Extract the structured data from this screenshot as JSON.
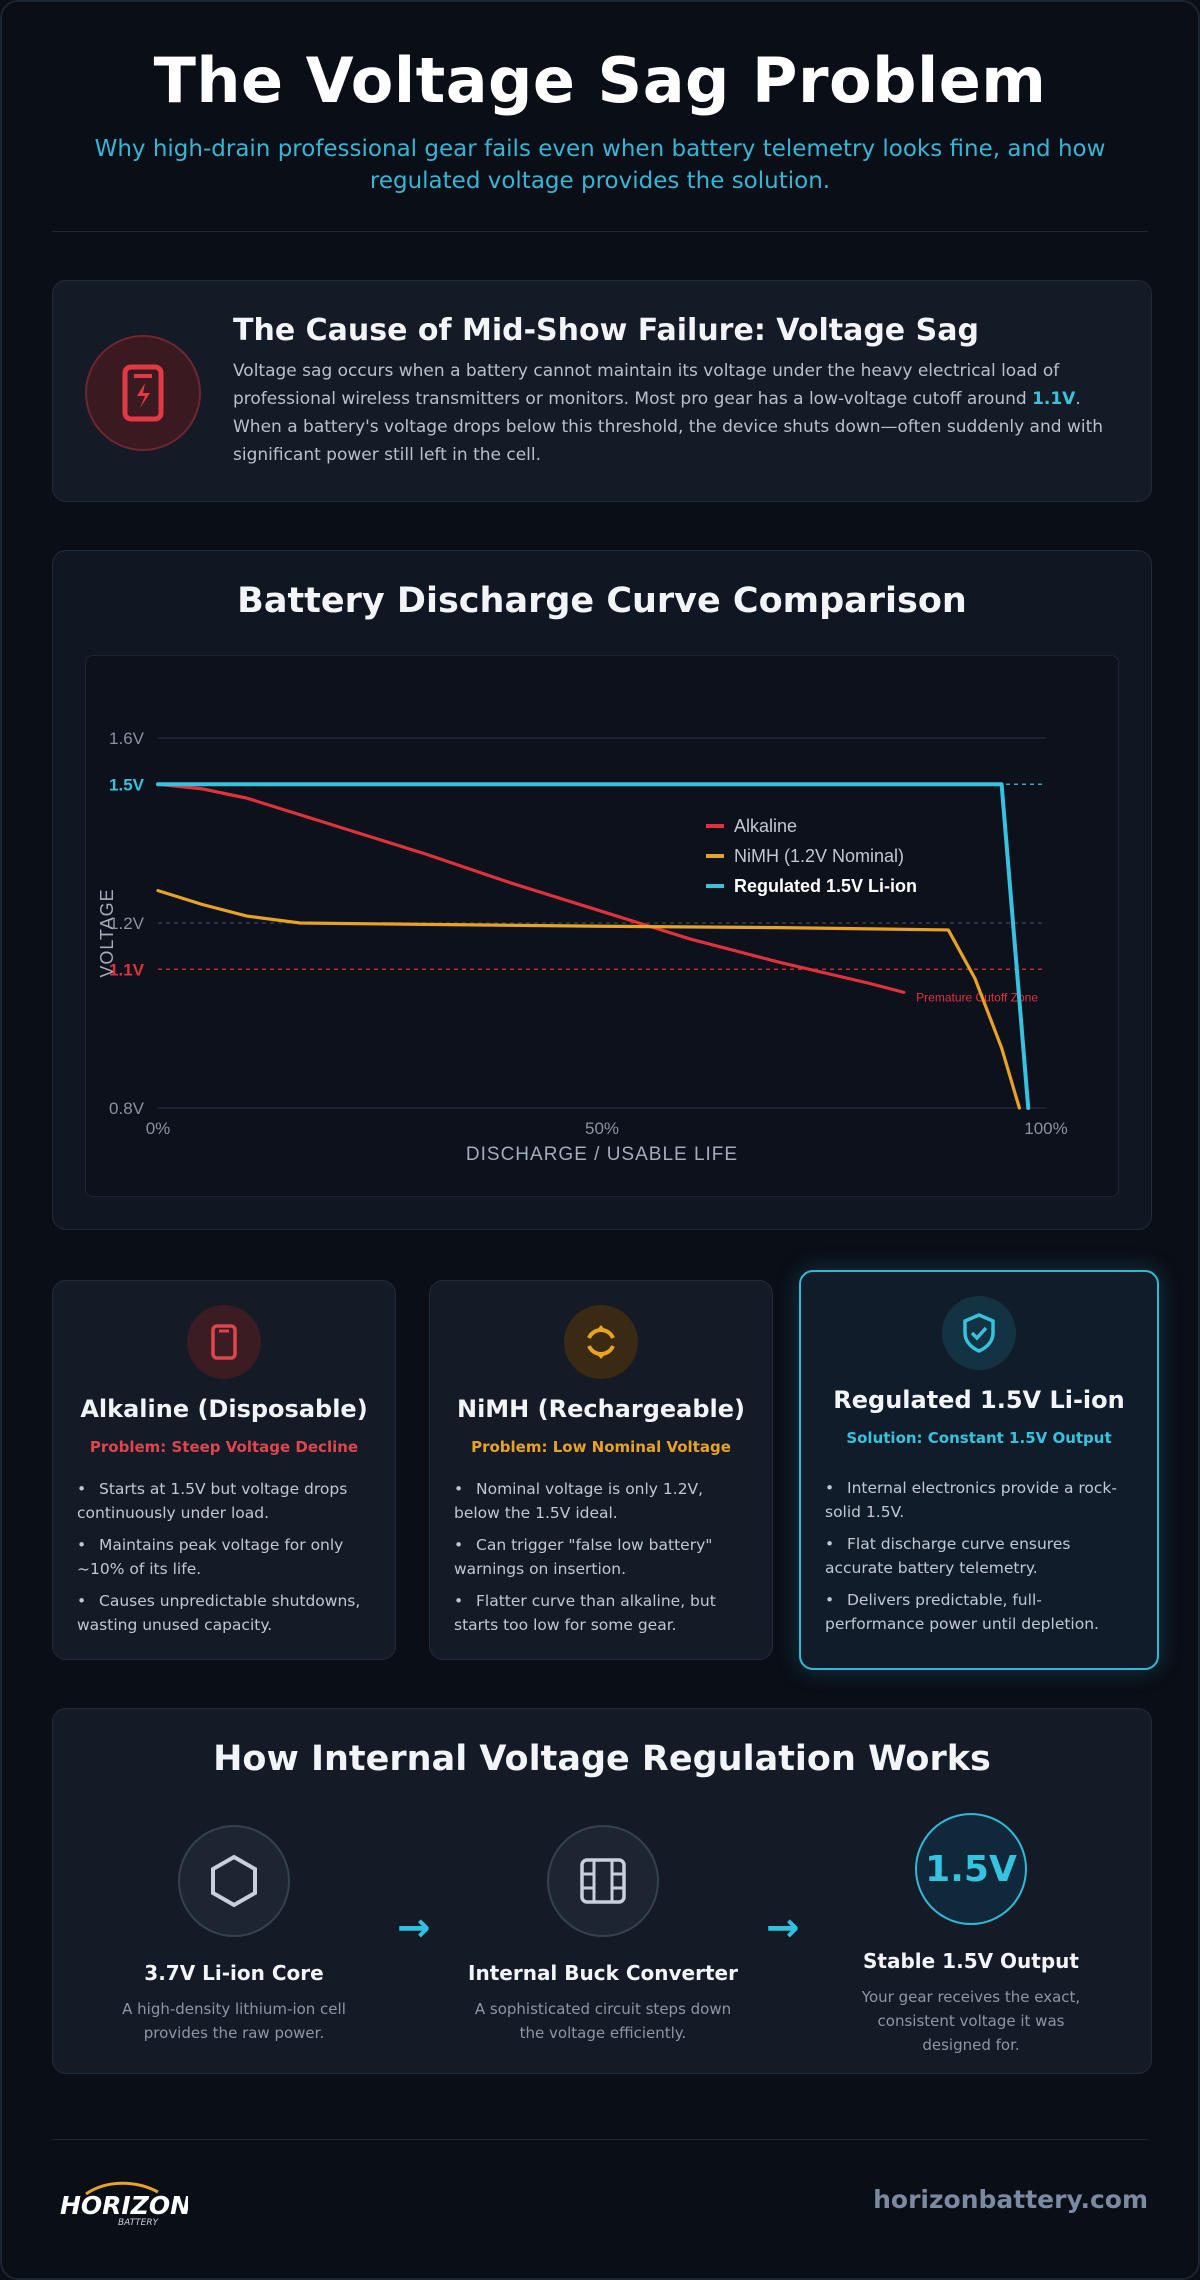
{
  "header": {
    "title": "The Voltage Sag Problem",
    "subtitle": "Why high-drain professional gear fails even when battery telemetry looks fine, and how regulated voltage provides the solution."
  },
  "cause": {
    "icon": "battery-bolt-icon",
    "title": "The Cause of Mid-Show Failure: Voltage Sag",
    "text_before": "Voltage sag occurs when a battery cannot maintain its voltage under the heavy electrical load of professional wireless transmitters or monitors. Most pro gear has a low-voltage cutoff around ",
    "highlight": "1.1V",
    "text_after": ". When a battery's voltage drops below this threshold, the device shuts down—often suddenly and with significant power still left in the cell."
  },
  "chart_section": {
    "title": "Battery Discharge Curve Comparison"
  },
  "chart_data": {
    "type": "line",
    "title": "Battery Discharge Curve Comparison",
    "xlabel": "DISCHARGE / USABLE LIFE",
    "ylabel": "VOLTAGE",
    "xlim": [
      0,
      100
    ],
    "ylim": [
      0.8,
      1.6
    ],
    "x_ticks": [
      "0%",
      "50%",
      "100%"
    ],
    "x_tick_values": [
      0,
      50,
      100
    ],
    "y_ticks": [
      "0.8V",
      "1.1V",
      "1.2V",
      "1.5V",
      "1.6V"
    ],
    "y_tick_values": [
      0.8,
      1.1,
      1.2,
      1.5,
      1.6
    ],
    "reference_lines": [
      {
        "y": 1.1,
        "label": "Premature Cutoff Zone",
        "color": "#e0323c"
      },
      {
        "y": 1.2,
        "label": "",
        "color": "#3a4352"
      },
      {
        "y": 1.5,
        "label": "",
        "color": "#35c3e0"
      }
    ],
    "legend_position": "top-right",
    "grid": false,
    "series": [
      {
        "name": "Alkaline",
        "color": "#e0323c",
        "x": [
          0,
          5,
          10,
          15,
          20,
          30,
          40,
          50,
          60,
          70,
          80,
          84
        ],
        "values": [
          1.5,
          1.49,
          1.47,
          1.44,
          1.41,
          1.35,
          1.285,
          1.225,
          1.165,
          1.115,
          1.07,
          1.05
        ]
      },
      {
        "name": "NiMH (1.2V Nominal)",
        "color": "#e8a323",
        "x": [
          0,
          5,
          10,
          16,
          30,
          50,
          70,
          89,
          92,
          95,
          97
        ],
        "values": [
          1.27,
          1.24,
          1.215,
          1.2,
          1.197,
          1.193,
          1.19,
          1.185,
          1.08,
          0.93,
          0.8
        ]
      },
      {
        "name": "Regulated 1.5V Li-ion",
        "color": "#35c3e0",
        "x": [
          0,
          25,
          50,
          75,
          95,
          98
        ],
        "values": [
          1.5,
          1.5,
          1.5,
          1.5,
          1.5,
          0.8
        ]
      }
    ]
  },
  "batteries": [
    {
      "icon": "battery-icon",
      "title": "Alkaline (Disposable)",
      "problem": "Problem: Steep Voltage Decline",
      "color": "#e0454d",
      "bullets": [
        "Starts at 1.5V but voltage drops continuously under load.",
        "Maintains peak voltage for only ~10% of its life.",
        "Causes unpredictable shutdowns, wasting unused capacity."
      ]
    },
    {
      "icon": "recharge-icon",
      "title": "NiMH (Rechargeable)",
      "problem": "Problem: Low Nominal Voltage",
      "color": "#e8a323",
      "bullets": [
        "Nominal voltage is only 1.2V, below the 1.5V ideal.",
        "Can trigger \"false low battery\" warnings on insertion.",
        "Flatter curve than alkaline, but starts too low for some gear."
      ]
    },
    {
      "icon": "shield-check-icon",
      "title": "Regulated 1.5V Li-ion",
      "problem": "Solution: Constant 1.5V Output",
      "color": "#35c3e0",
      "bullets": [
        "Internal electronics provide a rock-solid 1.5V.",
        "Flat discharge curve ensures accurate battery telemetry.",
        "Delivers predictable, full-performance power until depletion."
      ]
    }
  ],
  "regulation": {
    "title": "How Internal Voltage Regulation Works",
    "steps": [
      {
        "icon": "hexagon-icon",
        "title": "3.7V Li-ion Core",
        "text": "A high-density lithium-ion cell provides the raw power."
      },
      {
        "icon": "circuit-chip-icon",
        "title": "Internal Buck Converter",
        "text": "A sophisticated circuit steps down the voltage efficiently."
      },
      {
        "icon_text": "1.5V",
        "title": "Stable 1.5V Output",
        "text": "Your gear receives the exact, consistent voltage it was designed for."
      }
    ],
    "arrow": "→"
  },
  "footer": {
    "logo_text": "HORIZON",
    "logo_sub": "BATTERY",
    "url": "horizonbattery.com"
  }
}
